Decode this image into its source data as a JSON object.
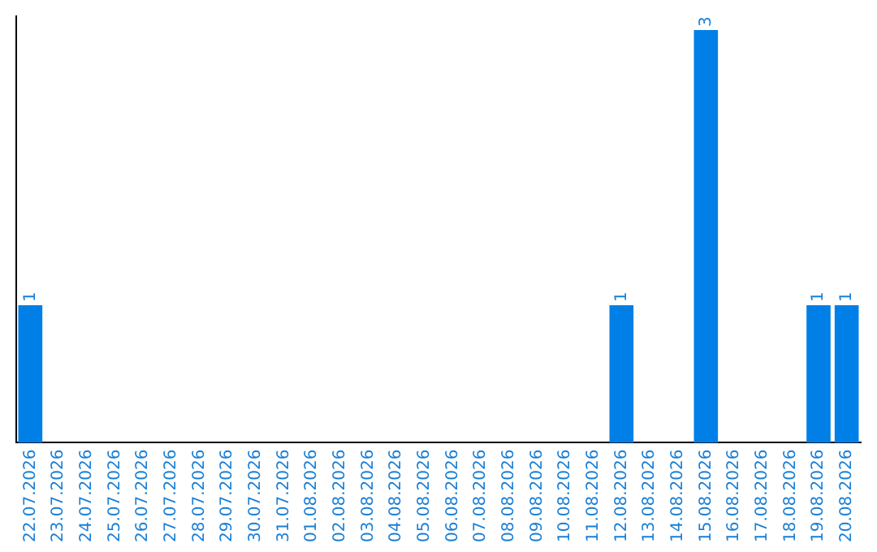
{
  "chart_data": {
    "type": "bar",
    "categories": [
      "22.07.2026",
      "23.07.2026",
      "24.07.2026",
      "25.07.2026",
      "26.07.2026",
      "27.07.2026",
      "28.07.2026",
      "29.07.2026",
      "30.07.2026",
      "31.07.2026",
      "01.08.2026",
      "02.08.2026",
      "03.08.2026",
      "04.08.2026",
      "05.08.2026",
      "06.08.2026",
      "07.08.2026",
      "08.08.2026",
      "09.08.2026",
      "10.08.2026",
      "11.08.2026",
      "12.08.2026",
      "13.08.2026",
      "14.08.2026",
      "15.08.2026",
      "16.08.2026",
      "17.08.2026",
      "18.08.2026",
      "19.08.2026",
      "20.08.2026"
    ],
    "values": [
      1,
      0,
      0,
      0,
      0,
      0,
      0,
      0,
      0,
      0,
      0,
      0,
      0,
      0,
      0,
      0,
      0,
      0,
      0,
      0,
      0,
      1,
      0,
      0,
      3,
      0,
      0,
      0,
      1,
      1
    ],
    "value_labels": [
      "1",
      null,
      null,
      null,
      null,
      null,
      null,
      null,
      null,
      null,
      null,
      null,
      null,
      null,
      null,
      null,
      null,
      null,
      null,
      null,
      null,
      "1",
      null,
      null,
      "3",
      null,
      null,
      null,
      "1",
      "1"
    ],
    "color": "#0080e6",
    "ylim": [
      0,
      3.1
    ],
    "tick_labels": "x",
    "grid": false,
    "legend": false
  }
}
